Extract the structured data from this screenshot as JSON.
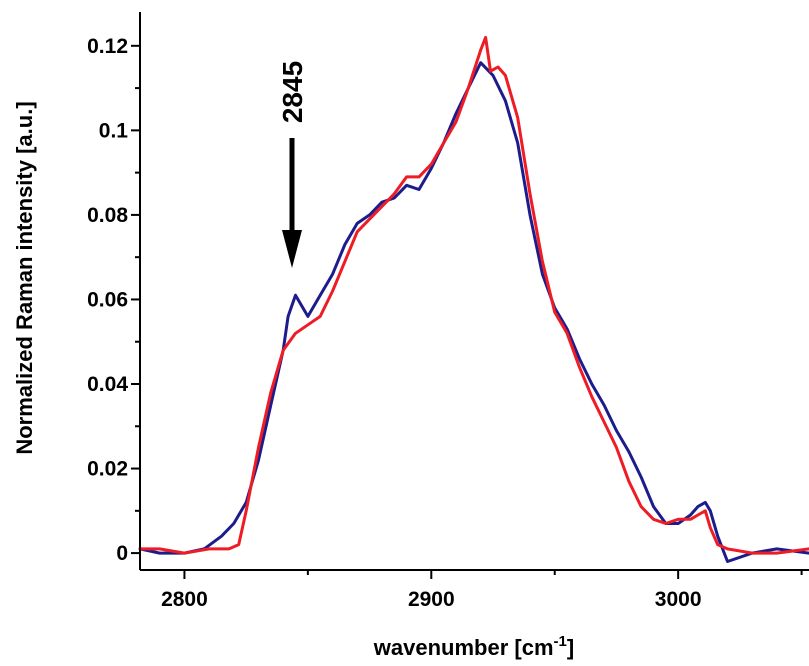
{
  "chart_data": {
    "type": "line",
    "xlabel_main": "wavenumber [cm",
    "xlabel_sup": "-1",
    "xlabel_end": "]",
    "ylabel": "Normalized Raman intensity [a.u.]",
    "xlim": [
      2782,
      3053
    ],
    "ylim": [
      -0.004,
      0.128
    ],
    "xticks": [
      2800,
      2900,
      3000
    ],
    "xtick_labels": [
      "2800",
      "2900",
      "3000"
    ],
    "yticks": [
      0,
      0.02,
      0.04,
      0.06,
      0.08,
      0.1,
      0.12
    ],
    "ytick_labels": [
      "0",
      "0.02",
      "0.04",
      "0.06",
      "0.08",
      "0.1",
      "0.12"
    ],
    "annotation": {
      "text": "2845",
      "x": 2845,
      "y": 0.061
    },
    "grid": false,
    "series": [
      {
        "color": "#1c1c8c",
        "x": [
          2782,
          2790,
          2800,
          2808,
          2815,
          2820,
          2825,
          2830,
          2835,
          2840,
          2842,
          2845,
          2848,
          2850,
          2855,
          2860,
          2865,
          2870,
          2875,
          2880,
          2885,
          2890,
          2895,
          2900,
          2905,
          2910,
          2915,
          2920,
          2925,
          2930,
          2935,
          2940,
          2945,
          2950,
          2955,
          2960,
          2965,
          2970,
          2975,
          2980,
          2985,
          2990,
          2995,
          3000,
          3005,
          3008,
          3011,
          3013,
          3016,
          3020,
          3030,
          3040,
          3053
        ],
        "y": [
          0.001,
          0.0,
          0.0,
          0.001,
          0.004,
          0.007,
          0.012,
          0.022,
          0.035,
          0.048,
          0.056,
          0.061,
          0.058,
          0.056,
          0.061,
          0.066,
          0.073,
          0.078,
          0.08,
          0.083,
          0.084,
          0.087,
          0.086,
          0.091,
          0.097,
          0.104,
          0.11,
          0.116,
          0.113,
          0.107,
          0.097,
          0.08,
          0.066,
          0.058,
          0.053,
          0.046,
          0.04,
          0.035,
          0.029,
          0.024,
          0.018,
          0.011,
          0.007,
          0.007,
          0.009,
          0.011,
          0.012,
          0.01,
          0.004,
          -0.002,
          0.0,
          0.001,
          0.0
        ]
      },
      {
        "color": "#ee1c24",
        "x": [
          2782,
          2790,
          2800,
          2810,
          2818,
          2822,
          2825,
          2830,
          2835,
          2840,
          2845,
          2850,
          2855,
          2860,
          2865,
          2870,
          2875,
          2880,
          2885,
          2890,
          2895,
          2900,
          2905,
          2910,
          2915,
          2920,
          2922,
          2924,
          2927,
          2930,
          2935,
          2940,
          2945,
          2950,
          2955,
          2960,
          2965,
          2970,
          2975,
          2980,
          2985,
          2990,
          2995,
          3000,
          3005,
          3008,
          3011,
          3013,
          3016,
          3020,
          3030,
          3040,
          3053
        ],
        "y": [
          0.001,
          0.001,
          0.0,
          0.001,
          0.001,
          0.002,
          0.01,
          0.025,
          0.038,
          0.048,
          0.052,
          0.054,
          0.056,
          0.062,
          0.069,
          0.076,
          0.079,
          0.082,
          0.085,
          0.089,
          0.089,
          0.092,
          0.097,
          0.102,
          0.11,
          0.119,
          0.122,
          0.114,
          0.115,
          0.113,
          0.103,
          0.085,
          0.069,
          0.057,
          0.052,
          0.044,
          0.037,
          0.031,
          0.025,
          0.017,
          0.011,
          0.008,
          0.007,
          0.008,
          0.008,
          0.009,
          0.01,
          0.006,
          0.002,
          0.001,
          0.0,
          0.0,
          0.001
        ]
      }
    ]
  }
}
